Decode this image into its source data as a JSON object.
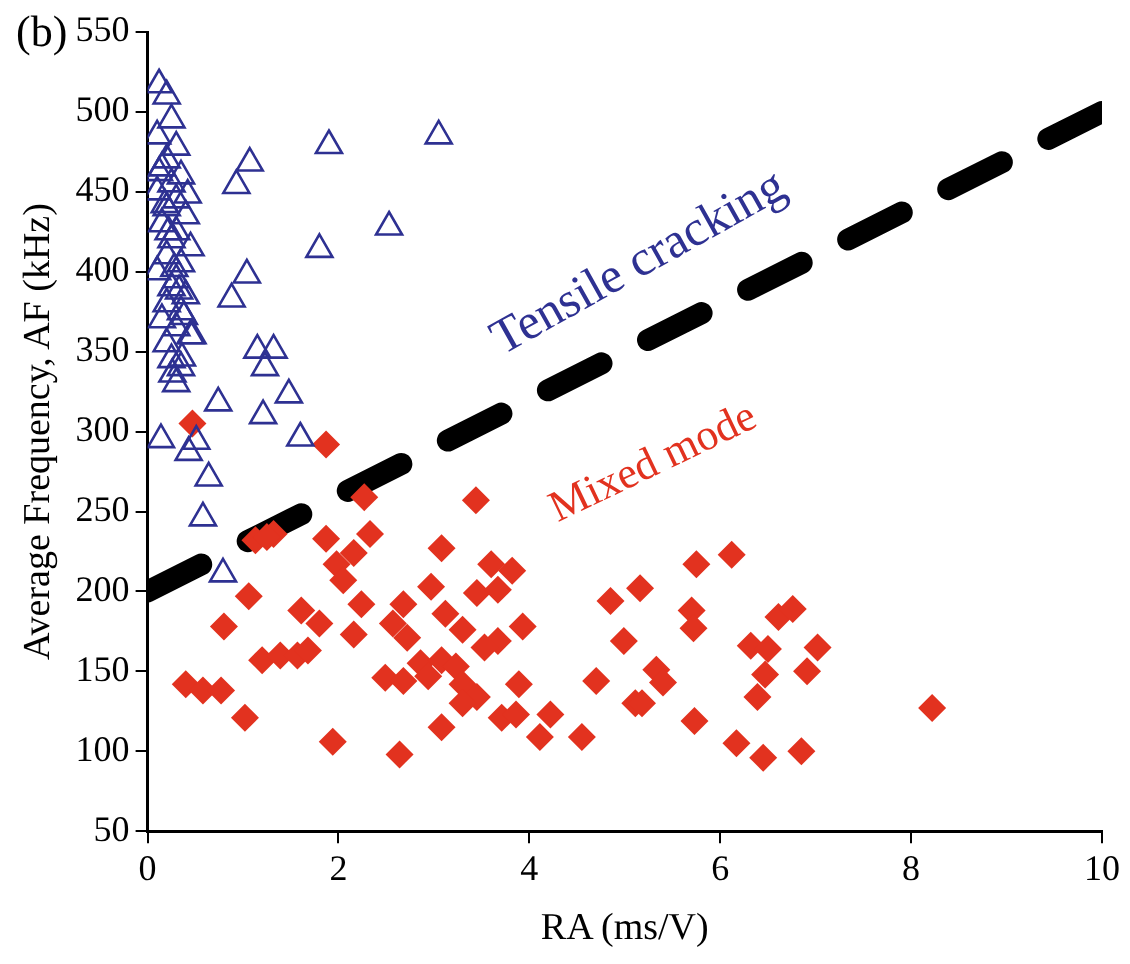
{
  "chart_data": {
    "type": "scatter",
    "title": "(b)",
    "xlabel": "RA (ms/V)",
    "ylabel": "Average Frequency, AF (kHz)",
    "xlim": [
      0,
      10
    ],
    "xticks": [
      0,
      2,
      4,
      6,
      8,
      10
    ],
    "ylim": [
      50,
      550
    ],
    "yticks": [
      50,
      100,
      150,
      200,
      250,
      300,
      350,
      400,
      450,
      500,
      550
    ],
    "grid": false,
    "legend": false,
    "annotations": [
      "Tensile cracking",
      "Mixed mode"
    ],
    "series": [
      {
        "marker": "triangle",
        "color": "#2e3192",
        "x": [
          0.12,
          0.2,
          0.25,
          0.1,
          0.3,
          0.2,
          0.15,
          0.35,
          0.25,
          0.1,
          0.3,
          0.2,
          0.4,
          0.15,
          0.3,
          0.25,
          0.45,
          0.2,
          0.35,
          0.1,
          0.3,
          0.25,
          0.4,
          0.2,
          0.35,
          0.15,
          0.3,
          0.45,
          0.2,
          0.25,
          0.35,
          0.3,
          0.26,
          0.36,
          0.47,
          0.14,
          0.43,
          0.51,
          0.64,
          0.58,
          0.79,
          0.74,
          1.21,
          1.6,
          1.48,
          1.23,
          1.15,
          1.32,
          0.88,
          1.04,
          1.8,
          2.53,
          0.93,
          1.07,
          1.9,
          3.05,
          0.18,
          0.22,
          0.28,
          0.33,
          0.38,
          0.12,
          0.42
        ],
        "values": [
          517,
          510,
          495,
          485,
          478,
          470,
          465,
          460,
          455,
          450,
          445,
          440,
          435,
          430,
          425,
          420,
          415,
          410,
          405,
          400,
          395,
          390,
          385,
          380,
          375,
          370,
          365,
          360,
          355,
          345,
          340,
          330,
          336,
          346,
          360,
          295,
          287,
          294,
          271,
          246,
          211,
          318,
          310,
          296,
          323,
          340,
          351,
          351,
          383,
          398,
          414,
          428,
          454,
          468,
          479,
          485,
          442,
          425,
          402,
          388,
          372,
          462,
          448
        ]
      },
      {
        "marker": "diamond",
        "color": "#e2321f",
        "x": [
          0.47,
          1.87,
          2.27,
          3.44,
          1.13,
          1.32,
          1.25,
          1.87,
          2.33,
          3.08,
          2.16,
          1.98,
          2.05,
          1.06,
          2.97,
          3.6,
          3.82,
          3.45,
          3.67,
          2.24,
          1.61,
          1.8,
          2.68,
          2.57,
          2.72,
          3.12,
          3.3,
          3.93,
          3.67,
          3.53,
          2.16,
          0.8,
          4.85,
          4.99,
          1.2,
          1.39,
          1.57,
          1.68,
          2.86,
          3.08,
          3.23,
          2.49,
          2.68,
          2.94,
          3.3,
          3.45,
          3.3,
          0.4,
          0.58,
          0.77,
          3.89,
          3.71,
          3.86,
          4.22,
          4.7,
          4.11,
          4.55,
          3.08,
          1.02,
          1.94,
          2.64,
          5.11,
          5.75,
          6.12,
          5.16,
          5.7,
          5.72,
          6.61,
          6.76,
          6.32,
          6.5,
          7.02,
          6.91,
          6.47,
          6.39,
          5.33,
          5.4,
          5.18,
          5.73,
          6.17,
          6.45,
          6.85,
          8.22
        ],
        "values": [
          305,
          292,
          259,
          257,
          232,
          236,
          234,
          233,
          236,
          227,
          224,
          217,
          207,
          197,
          203,
          217,
          213,
          199,
          201,
          192,
          188,
          180,
          192,
          180,
          171,
          186,
          176,
          178,
          169,
          165,
          173,
          178,
          194,
          169,
          157,
          160,
          160,
          163,
          155,
          157,
          153,
          146,
          144,
          147,
          142,
          134,
          130,
          142,
          138,
          138,
          142,
          121,
          123,
          123,
          144,
          109,
          109,
          115,
          121,
          106,
          98,
          130,
          217,
          223,
          202,
          188,
          177,
          184,
          189,
          166,
          164,
          165,
          150,
          148,
          134,
          151,
          143,
          130,
          119,
          105,
          96,
          100,
          127
        ]
      },
      {
        "type": "line",
        "marker": "none",
        "line_style": "dashed",
        "color": "#000000",
        "x": [
          0,
          10
        ],
        "values": [
          200,
          500
        ]
      }
    ]
  }
}
